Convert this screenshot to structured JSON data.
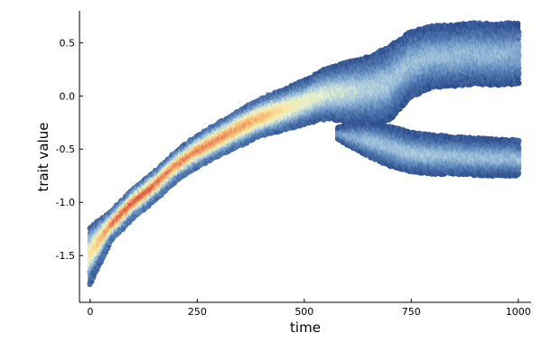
{
  "chart_data": {
    "type": "scatter",
    "subtype": "density-colored trait evolution (branching)",
    "title": "",
    "xlabel": "time",
    "ylabel": "trait value",
    "xlim": [
      -25,
      1030
    ],
    "ylim": [
      -1.94,
      0.8
    ],
    "x_ticks": [
      0,
      250,
      500,
      750,
      1000
    ],
    "x_tick_labels": [
      "0",
      "250",
      "500",
      "750",
      "1000"
    ],
    "y_ticks": [
      -1.5,
      -1.0,
      -0.5,
      0.0,
      0.5
    ],
    "y_tick_labels": [
      "-1.5",
      "-1.0",
      "-0.5",
      "0.0",
      "0.5"
    ],
    "grid": false,
    "legend": "none",
    "colormap": [
      "#2b4b8c",
      "#5b84b8",
      "#9fc1dc",
      "#e6f2cf",
      "#f8e7a3",
      "#f6b66f",
      "#e3604a",
      "#b2182b"
    ],
    "branches": [
      {
        "name": "",
        "points": [
          [
            0,
            -1.5
          ],
          [
            50,
            -1.22
          ],
          [
            100,
            -1.01
          ],
          [
            150,
            -0.85
          ],
          [
            200,
            -0.66
          ],
          [
            250,
            -0.52
          ],
          [
            300,
            -0.41
          ],
          [
            350,
            -0.3
          ],
          [
            400,
            -0.2
          ],
          [
            450,
            -0.13
          ],
          [
            500,
            -0.06
          ],
          [
            550,
            0.02
          ],
          [
            600,
            0.04
          ],
          [
            650,
            0.06
          ],
          [
            700,
            0.12
          ],
          [
            750,
            0.3
          ],
          [
            800,
            0.37
          ],
          [
            850,
            0.38
          ],
          [
            900,
            0.4
          ],
          [
            950,
            0.39
          ],
          [
            1000,
            0.4
          ]
        ],
        "half_width": [
          [
            0,
            0.26
          ],
          [
            50,
            0.13
          ],
          [
            100,
            0.13
          ],
          [
            200,
            0.13
          ],
          [
            300,
            0.15
          ],
          [
            400,
            0.17
          ],
          [
            500,
            0.2
          ],
          [
            550,
            0.23
          ],
          [
            600,
            0.27
          ],
          [
            650,
            0.3
          ],
          [
            700,
            0.34
          ],
          [
            750,
            0.3
          ],
          [
            800,
            0.28
          ],
          [
            1000,
            0.28
          ]
        ],
        "peak_density": [
          [
            0,
            0.55
          ],
          [
            60,
            0.85
          ],
          [
            120,
            0.88
          ],
          [
            200,
            0.8
          ],
          [
            300,
            0.8
          ],
          [
            400,
            0.72
          ],
          [
            450,
            0.6
          ],
          [
            500,
            0.48
          ],
          [
            560,
            0.4
          ],
          [
            650,
            0.33
          ],
          [
            750,
            0.28
          ],
          [
            1000,
            0.25
          ]
        ]
      },
      {
        "name": "",
        "points": [
          [
            580,
            -0.35
          ],
          [
            620,
            -0.38
          ],
          [
            660,
            -0.42
          ],
          [
            700,
            -0.47
          ],
          [
            750,
            -0.53
          ],
          [
            800,
            -0.55
          ],
          [
            850,
            -0.56
          ],
          [
            900,
            -0.57
          ],
          [
            950,
            -0.58
          ],
          [
            1000,
            -0.58
          ]
        ],
        "half_width": [
          [
            580,
            0.05
          ],
          [
            620,
            0.12
          ],
          [
            660,
            0.16
          ],
          [
            700,
            0.18
          ],
          [
            750,
            0.18
          ],
          [
            850,
            0.17
          ],
          [
            1000,
            0.16
          ]
        ],
        "peak_density": [
          [
            580,
            0.22
          ],
          [
            650,
            0.28
          ],
          [
            750,
            0.3
          ],
          [
            1000,
            0.27
          ]
        ]
      }
    ]
  }
}
